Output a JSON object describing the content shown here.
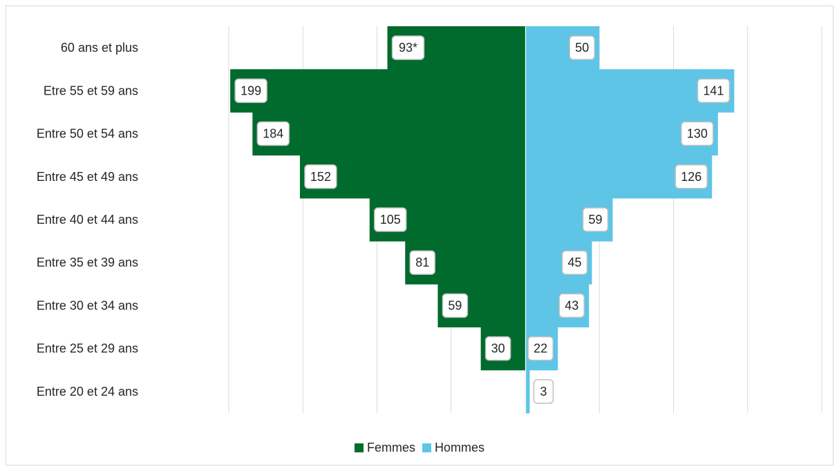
{
  "chart_data": {
    "type": "bar",
    "orientation": "horizontal",
    "layout": "population-pyramid",
    "categories": [
      "60 ans et plus",
      "Etre 55 et 59 ans",
      "Entre 50 et 54 ans",
      "Entre 45 et 49 ans",
      "Entre 40 et 44 ans",
      "Entre 35 et 39 ans",
      "Entre 30 et 34 ans",
      "Entre 25 et 29 ans",
      "Entre 20 et 24 ans"
    ],
    "series": [
      {
        "name": "Femmes",
        "color": "#006b2d",
        "values": [
          93,
          199,
          184,
          152,
          105,
          81,
          59,
          30,
          0
        ],
        "labels": [
          "93*",
          "199",
          "184",
          "152",
          "105",
          "81",
          "59",
          "30",
          ""
        ]
      },
      {
        "name": "Hommes",
        "color": "#5ec5e6",
        "values": [
          50,
          141,
          130,
          126,
          59,
          45,
          43,
          22,
          3
        ],
        "labels": [
          "50",
          "141",
          "130",
          "126",
          "59",
          "45",
          "43",
          "22",
          "3"
        ]
      }
    ],
    "xlim": [
      -200,
      200
    ],
    "gridlines": true,
    "legend_position": "bottom"
  }
}
